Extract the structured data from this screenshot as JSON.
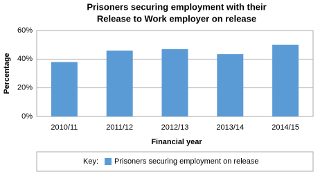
{
  "chart_data": {
    "type": "bar",
    "title": [
      "Prisoners securing employment with their",
      "Release to Work employer on release"
    ],
    "x_label": "Financial year",
    "y_label": "Percentage",
    "categories": [
      "2010/11",
      "2011/12",
      "2012/13",
      "2013/14",
      "2014/15"
    ],
    "series": [
      {
        "name": "Prisoners securing employment on release",
        "color": "#5b9bd5",
        "values": [
          38,
          46,
          47,
          43.5,
          50
        ]
      }
    ],
    "ylim": [
      0,
      60
    ],
    "yticks": [
      {
        "value": 0,
        "label": "0%"
      },
      {
        "value": 20,
        "label": "20%"
      },
      {
        "value": 40,
        "label": "40%"
      },
      {
        "value": 60,
        "label": "60%"
      }
    ],
    "grid": true,
    "legend_title": "Key:",
    "legend_position": "bottom"
  }
}
